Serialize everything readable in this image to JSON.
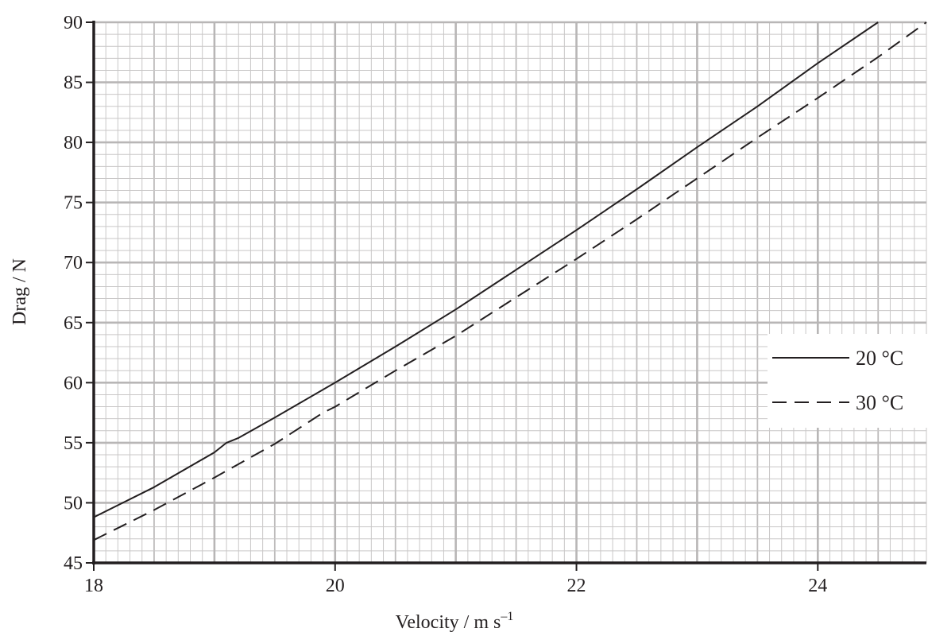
{
  "chart_data": {
    "type": "line",
    "title": "",
    "xlabel": "Velocity / m s",
    "xlabel_sup": "–1",
    "ylabel": "Drag / N",
    "xlim": [
      18,
      24.9
    ],
    "ylim": [
      45,
      90
    ],
    "xticks": [
      18,
      20,
      22,
      24
    ],
    "yticks": [
      45,
      50,
      55,
      60,
      65,
      70,
      75,
      80,
      85,
      90
    ],
    "grid": "fine graph-paper grid, major every 1 m/s and 5 N",
    "legend_position": "right",
    "series": [
      {
        "name": "20 °C",
        "style": "solid",
        "color": "#231f20",
        "x": [
          18.0,
          18.5,
          19.0,
          19.1,
          19.2,
          19.5,
          20.0,
          20.5,
          21.0,
          21.5,
          22.0,
          22.5,
          23.0,
          23.5,
          24.0,
          24.5
        ],
        "y": [
          48.8,
          51.3,
          54.2,
          55.0,
          55.4,
          57.1,
          60.0,
          63.0,
          66.1,
          69.4,
          72.7,
          76.1,
          79.6,
          83.0,
          86.6,
          90.0
        ]
      },
      {
        "name": "30 °C",
        "style": "dashed",
        "color": "#231f20",
        "x": [
          18.0,
          18.5,
          19.0,
          19.5,
          19.9,
          20.0,
          20.5,
          21.0,
          21.5,
          22.0,
          22.5,
          23.0,
          23.5,
          24.0,
          24.5,
          24.9
        ],
        "y": [
          46.9,
          49.4,
          52.1,
          54.9,
          57.5,
          58.0,
          61.0,
          63.9,
          67.1,
          70.3,
          73.6,
          77.0,
          80.4,
          83.7,
          87.1,
          90.0
        ]
      }
    ]
  }
}
